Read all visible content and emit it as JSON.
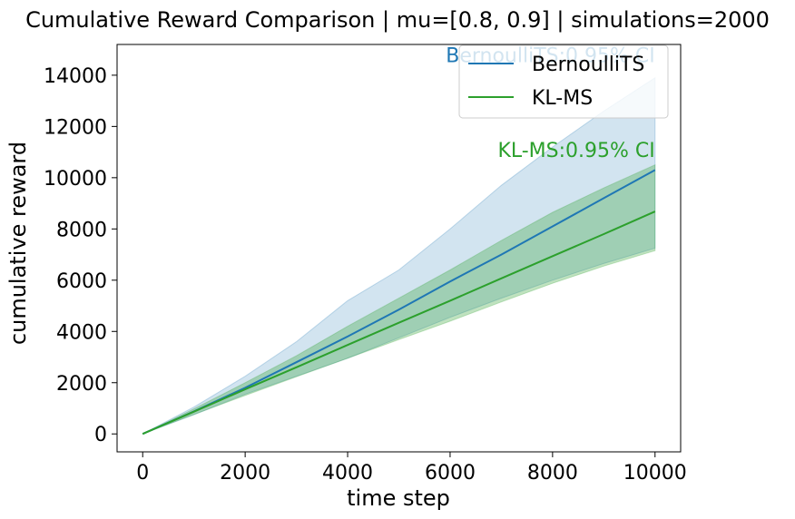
{
  "chart_data": {
    "type": "line",
    "title": "Cumulative Reward Comparison | mu=[0.8, 0.9] | simulations=2000",
    "xlabel": "time step",
    "ylabel": "cumulative reward",
    "xlim": [
      -500,
      10500
    ],
    "ylim": [
      -700,
      15200
    ],
    "xticks": [
      0,
      2000,
      4000,
      6000,
      8000,
      10000
    ],
    "xtick_labels": [
      "0",
      "2000",
      "4000",
      "6000",
      "8000",
      "10000"
    ],
    "yticks": [
      0,
      2000,
      4000,
      6000,
      8000,
      10000,
      12000,
      14000
    ],
    "ytick_labels": [
      "0",
      "2000",
      "4000",
      "6000",
      "8000",
      "10000",
      "12000",
      "14000"
    ],
    "grid": false,
    "legend_position": "upper right",
    "series": [
      {
        "name": "BernoulliTS",
        "color": "#1f77b4",
        "x": [
          0,
          1000,
          2000,
          3000,
          4000,
          5000,
          6000,
          7000,
          8000,
          9000,
          10000
        ],
        "mean": [
          0,
          880,
          1800,
          2800,
          3800,
          4850,
          5950,
          7000,
          8100,
          9200,
          10300
        ],
        "ci_upper": [
          0,
          1050,
          2250,
          3600,
          5200,
          6400,
          8000,
          9700,
          11200,
          12600,
          13900
        ],
        "ci_lower": [
          0,
          750,
          1550,
          2250,
          2950,
          3750,
          4550,
          5300,
          6000,
          6650,
          7250
        ]
      },
      {
        "name": "KL-MS",
        "color": "#2ca02c",
        "x": [
          0,
          1000,
          2000,
          3000,
          4000,
          5000,
          6000,
          7000,
          8000,
          9000,
          10000
        ],
        "mean": [
          0,
          870,
          1740,
          2600,
          3470,
          4340,
          5200,
          6070,
          6940,
          7800,
          8680
        ],
        "ci_upper": [
          0,
          980,
          2000,
          3050,
          4200,
          5300,
          6400,
          7550,
          8650,
          9600,
          10500
        ],
        "ci_lower": [
          0,
          760,
          1500,
          2230,
          2950,
          3680,
          4400,
          5150,
          5880,
          6550,
          7150
        ]
      }
    ],
    "annotations": [
      {
        "text": "BernoulliTS:0.95% CI",
        "x": 10000,
        "y": 14800,
        "color": "#1f77b4"
      },
      {
        "text": "KL-MS:0.95% CI",
        "x": 10000,
        "y": 11100,
        "color": "#2ca02c"
      }
    ]
  }
}
